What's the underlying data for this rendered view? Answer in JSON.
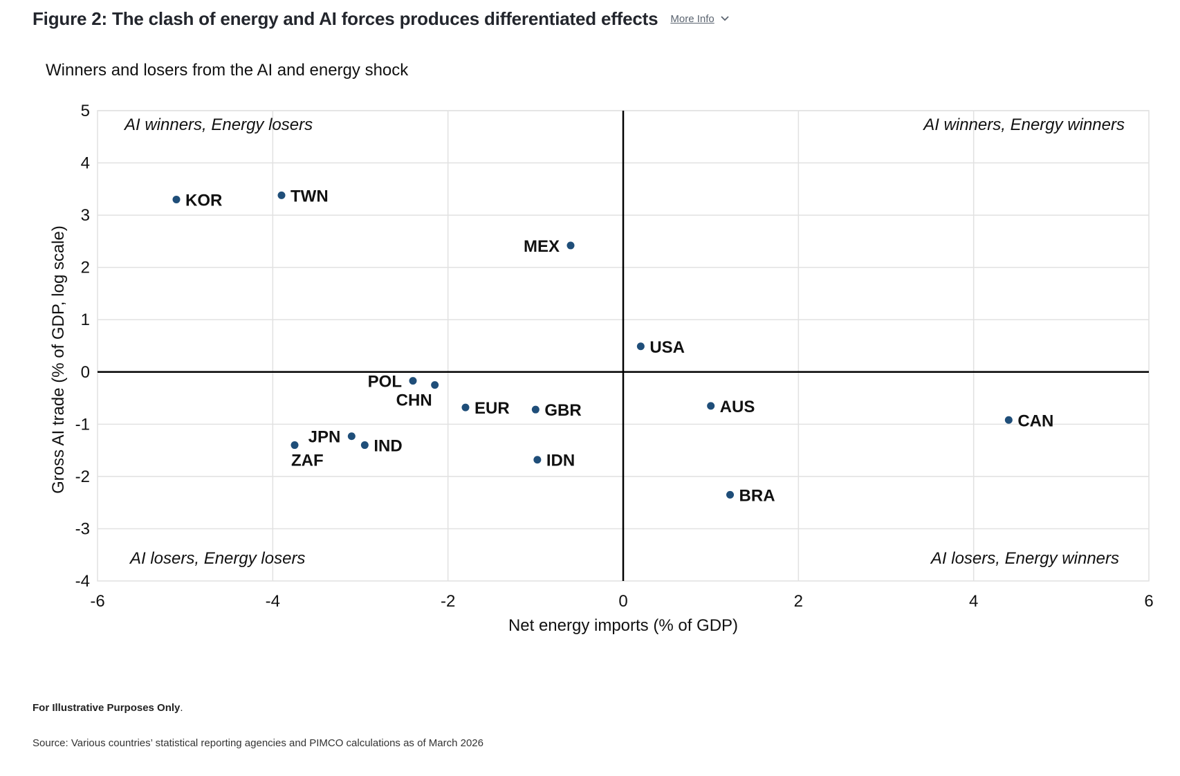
{
  "header": {
    "title": "Figure 2: The clash of energy and AI forces produces differentiated effects",
    "more_info_label": "More Info",
    "more_info_icon": "chevron-down-icon"
  },
  "footer": {
    "note_bold": "For Illustrative Purposes Only",
    "note_end": ".",
    "source": "Source: Various countries’ statistical reporting agencies and PIMCO calculations as of March 2026"
  },
  "colors": {
    "point": "#1f4e79",
    "grid": "#e1e1e1",
    "axis": "#000000",
    "text": "#111111"
  },
  "chart_data": {
    "type": "scatter",
    "title": "Winners and losers from the AI and energy shock",
    "xlabel": "Net energy imports (% of GDP)",
    "ylabel": "Gross AI trade (% of GDP, log scale)",
    "xlim": [
      -6,
      6
    ],
    "ylim": [
      -4,
      5
    ],
    "xticks": [
      -6,
      -4,
      -2,
      0,
      2,
      4,
      6
    ],
    "yticks": [
      -4,
      -3,
      -2,
      -1,
      0,
      1,
      2,
      3,
      4,
      5
    ],
    "grid": true,
    "quadrant_labels": {
      "top_left": "AI winners, Energy losers",
      "top_right": "AI winners, Energy winners",
      "bottom_left": "AI losers, Energy losers",
      "bottom_right": "AI losers, Energy winners"
    },
    "points": [
      {
        "label": "KOR",
        "x": -5.1,
        "y": 3.3,
        "label_pos": "right"
      },
      {
        "label": "TWN",
        "x": -3.9,
        "y": 3.38,
        "label_pos": "right"
      },
      {
        "label": "MEX",
        "x": -0.6,
        "y": 2.42,
        "label_pos": "left"
      },
      {
        "label": "USA",
        "x": 0.2,
        "y": 0.49,
        "label_pos": "right"
      },
      {
        "label": "POL",
        "x": -2.4,
        "y": -0.17,
        "label_pos": "left"
      },
      {
        "label": "CHN",
        "x": -2.15,
        "y": -0.25,
        "label_pos": "below-left"
      },
      {
        "label": "EUR",
        "x": -1.8,
        "y": -0.68,
        "label_pos": "right"
      },
      {
        "label": "GBR",
        "x": -1.0,
        "y": -0.72,
        "label_pos": "right"
      },
      {
        "label": "AUS",
        "x": 1.0,
        "y": -0.65,
        "label_pos": "right"
      },
      {
        "label": "CAN",
        "x": 4.4,
        "y": -0.92,
        "label_pos": "right"
      },
      {
        "label": "JPN",
        "x": -3.1,
        "y": -1.23,
        "label_pos": "left"
      },
      {
        "label": "IND",
        "x": -2.95,
        "y": -1.4,
        "label_pos": "right"
      },
      {
        "label": "ZAF",
        "x": -3.75,
        "y": -1.4,
        "label_pos": "below"
      },
      {
        "label": "IDN",
        "x": -0.98,
        "y": -1.68,
        "label_pos": "right"
      },
      {
        "label": "BRA",
        "x": 1.22,
        "y": -2.35,
        "label_pos": "right"
      }
    ]
  }
}
